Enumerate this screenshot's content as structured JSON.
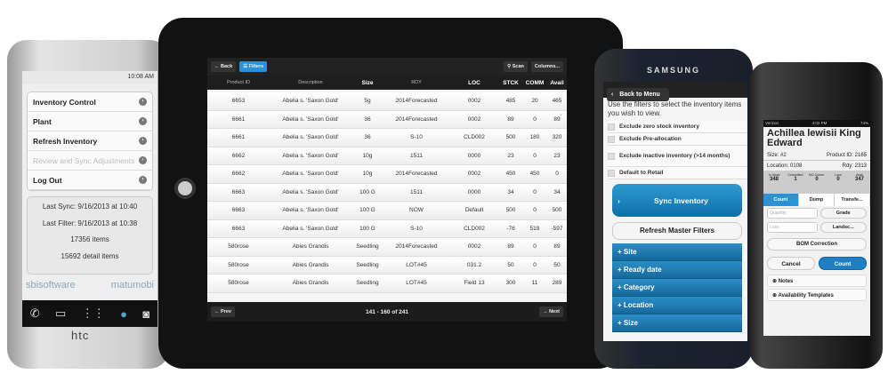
{
  "htc": {
    "status_time": "10:08 AM",
    "menu": [
      {
        "label": "Inventory Control",
        "enabled": true
      },
      {
        "label": "Plant",
        "enabled": true
      },
      {
        "label": "Refresh Inventory",
        "enabled": true
      },
      {
        "label": "Review and Sync Adjustments",
        "enabled": false
      },
      {
        "label": "Log Out",
        "enabled": true
      }
    ],
    "info": [
      "Last Sync: 9/16/2013 at 10:40",
      "Last Filter: 9/16/2013 at 10:38",
      "17356 items",
      "15692 detail items"
    ],
    "brand_left": "sbisoftware",
    "brand_right": "matumobi",
    "device_logo": "htc"
  },
  "tablet": {
    "back": "Back",
    "filters": "Filters",
    "scan": "Scan",
    "columns": "Columns...",
    "headers": [
      "Product ID",
      "Description",
      "Size",
      "RDY",
      "LOC",
      "STCK",
      "COMM",
      "Avail"
    ],
    "rows": [
      [
        "6653",
        "Abelia s. 'Saxon Gold'",
        "5g",
        "2014Forecasted",
        "0002",
        "485",
        "20",
        "465"
      ],
      [
        "6661",
        "Abelia s. 'Saxon Gold'",
        "36",
        "2014Forecasted",
        "0002",
        "89",
        "0",
        "89"
      ],
      [
        "6661",
        "Abelia s. 'Saxon Gold'",
        "36",
        "S-10",
        "CLD002",
        "500",
        "180",
        "320"
      ],
      [
        "6662",
        "Abelia s. 'Saxon Gold'",
        "10g",
        "1511",
        "0000",
        "23",
        "0",
        "23"
      ],
      [
        "6662",
        "Abelia s. 'Saxon Gold'",
        "10g",
        "2014Forecasted",
        "0002",
        "450",
        "450",
        "0"
      ],
      [
        "6663",
        "Abelia s. 'Saxon Gold'",
        "100 G",
        "1511",
        "0000",
        "34",
        "0",
        "34"
      ],
      [
        "6663",
        "Abelia s. 'Saxon Gold'",
        "100 G",
        "NOW",
        "Default",
        "500",
        "0",
        "500"
      ],
      [
        "6663",
        "Abelia s. 'Saxon Gold'",
        "100 G",
        "S-10",
        "CLD002",
        "-78",
        "519",
        "-597"
      ],
      [
        "580rose",
        "Abies Grandis",
        "Seedling",
        "2014Forecasted",
        "0002",
        "89",
        "0",
        "89"
      ],
      [
        "580rose",
        "Abies Grandis",
        "Seedling",
        "LOT#45",
        "031.2",
        "50",
        "0",
        "50"
      ],
      [
        "580rose",
        "Abies Grandis",
        "Seedling",
        "LOT#45",
        "Field 13",
        "300",
        "11",
        "289"
      ]
    ],
    "prev": "Prev",
    "pager": "141 - 160 of 241",
    "next": "Next"
  },
  "samsung": {
    "logo": "SAMSUNG",
    "back": "Back to Menu",
    "intro": "Use the filters to select the inventory items you wish to view.",
    "checks": [
      "Exclude zero stock inventory",
      "Exclude Pre-allocation",
      "Exclude inactive inventory (>14 months)",
      "Default to Retail"
    ],
    "sync": "Sync Inventory",
    "refresh": "Refresh Master Filters",
    "filters": [
      "Site",
      "Ready date",
      "Category",
      "Location",
      "Size"
    ]
  },
  "iphone": {
    "carrier": "Verizon",
    "time": "4:02 PM",
    "battery": "74%",
    "title": "Achillea lewisii King Edward",
    "size": "Size: #2",
    "product_id": "Product ID: 2165",
    "location": "Location: 0108",
    "rdy": "Rdy: 2313",
    "stats": [
      {
        "label": "In Stock",
        "value": "348"
      },
      {
        "label": "Committed",
        "value": "1"
      },
      {
        "label": "MO Comm.",
        "value": "0"
      },
      {
        "label": "Loss",
        "value": "0"
      },
      {
        "label": "Avail",
        "value": "347"
      }
    ],
    "tabs": [
      "Count",
      "Dump",
      "Transfe..."
    ],
    "quantity_placeholder": "Quantity",
    "grade": "Grade",
    "loss_placeholder": "Loss",
    "landscape": "Landsc...",
    "bom": "BOM Correction",
    "cancel": "Cancel",
    "count": "Count",
    "sections": [
      "Notes",
      "Availability Templates"
    ]
  }
}
